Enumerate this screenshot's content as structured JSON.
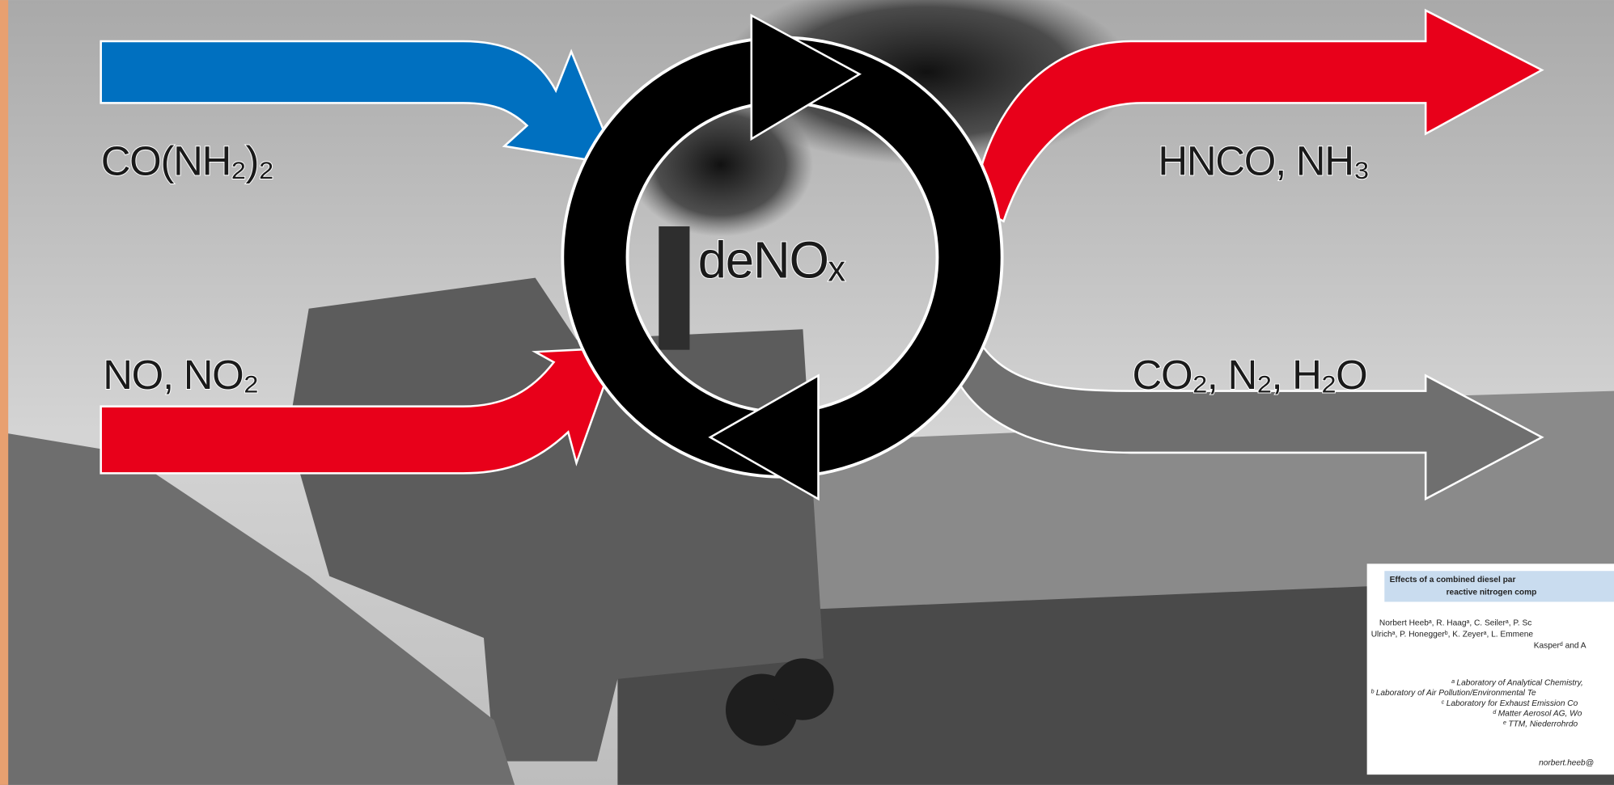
{
  "inputs": [
    "CO(NH₂)₂",
    "NO, NO₂"
  ],
  "outputs": [
    "HNCO, NH₃",
    "CO₂, N₂, H₂O"
  ],
  "center_label": "deNOₓ",
  "paper": {
    "title": [
      "Effects of a combined diesel par",
      "reactive nitrogen comp"
    ],
    "authors": [
      "Norbert Heebᵃ, R. Haagᵃ, C. Seilerᵃ, P. Sc",
      "Ulrichᵃ, P. Honeggerᵇ, K. Zeyerᵃ, L. Emmene",
      "Kasperᵈ and A"
    ],
    "affiliations": [
      "ᵃ Laboratory of Analytical Chemistry,",
      "ᵇ Laboratory of Air Pollution/Environmental Te",
      "ᶜ Laboratory for Exhaust Emission Co",
      "ᵈ Matter Aerosol AG, Wo",
      "ᵉ TTM, Niederrohrdo"
    ],
    "email": "norbert.heeb@"
  }
}
